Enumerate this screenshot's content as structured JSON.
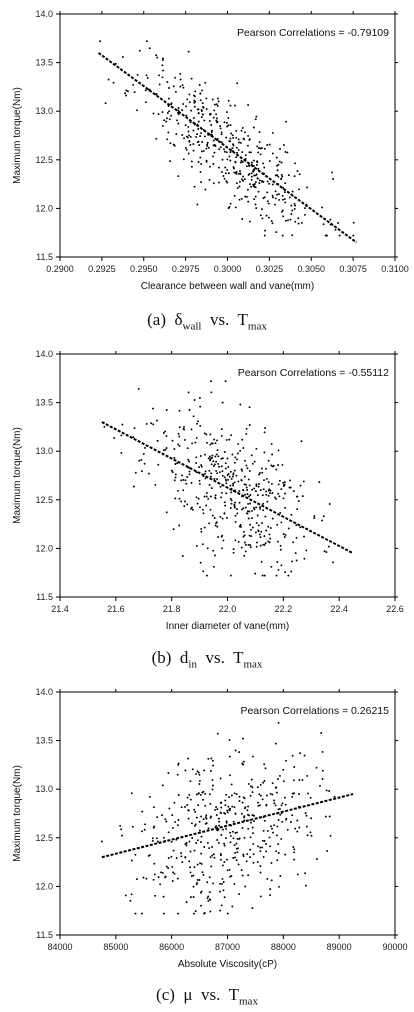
{
  "chart_data": [
    {
      "type": "scatter",
      "annotation": "Pearson Correlations = -0.79109",
      "xlabel": "Clearance between wall and vane(mm)",
      "ylabel": "Maximum torque(Nm)",
      "xlim": [
        0.29,
        0.31
      ],
      "ylim": [
        11.5,
        14.0
      ],
      "x_ticks": [
        "0.2900",
        "0.2925",
        "0.2950",
        "0.2975",
        "0.3000",
        "0.3025",
        "0.3050",
        "0.3075",
        "0.3100"
      ],
      "y_ticks": [
        "11.5",
        "12.0",
        "12.5",
        "13.0",
        "13.5",
        "14.0"
      ],
      "fit_line": {
        "x": [
          0.2923,
          0.3077
        ],
        "y": [
          13.6,
          11.65
        ]
      },
      "point_cloud": {
        "count": 480,
        "x_center": 0.3,
        "x_spread": 0.0027,
        "residual_spread": 0.27,
        "seed": 11
      },
      "caption": {
        "prefix": "(a)",
        "symbol": "δ",
        "sub": "wall",
        "vs": "vs.",
        "target": "T",
        "target_sub": "max"
      }
    },
    {
      "type": "scatter",
      "annotation": "Pearson Correlations = -0.55112",
      "xlabel": "Inner diameter of vane(mm)",
      "ylabel": "Maximum torque(Nm)",
      "xlim": [
        21.4,
        22.6
      ],
      "ylim": [
        11.5,
        14.0
      ],
      "x_ticks": [
        "21.4",
        "21.6",
        "21.8",
        "22.0",
        "22.2",
        "22.4",
        "22.6"
      ],
      "y_ticks": [
        "11.5",
        "12.0",
        "12.5",
        "13.0",
        "13.5",
        "14.0"
      ],
      "fit_line": {
        "x": [
          21.55,
          22.45
        ],
        "y": [
          13.3,
          11.95
        ]
      },
      "point_cloud": {
        "count": 480,
        "x_center": 22.0,
        "x_spread": 0.15,
        "residual_spread": 0.37,
        "seed": 23
      },
      "caption": {
        "prefix": "(b)",
        "symbol": "d",
        "sub": "in",
        "vs": "vs.",
        "target": "T",
        "target_sub": "max"
      }
    },
    {
      "type": "scatter",
      "annotation": "Pearson Correlations = 0.26215",
      "xlabel": "Absolute Viscosity(cP)",
      "ylabel": "Maximum torque(Nm)",
      "xlim": [
        84000,
        90000
      ],
      "ylim": [
        11.5,
        14.0
      ],
      "x_ticks": [
        "84000",
        "85000",
        "86000",
        "87000",
        "88000",
        "89000",
        "90000"
      ],
      "y_ticks": [
        "11.5",
        "12.0",
        "12.5",
        "13.0",
        "13.5",
        "14.0"
      ],
      "fit_line": {
        "x": [
          84750,
          89250
        ],
        "y": [
          12.3,
          12.95
        ]
      },
      "point_cloud": {
        "count": 480,
        "x_center": 87000,
        "x_spread": 800,
        "residual_spread": 0.4,
        "seed": 37
      },
      "caption": {
        "prefix": "(c)",
        "symbol": "μ",
        "sub": "",
        "vs": "vs.",
        "target": "T",
        "target_sub": "max"
      }
    }
  ]
}
